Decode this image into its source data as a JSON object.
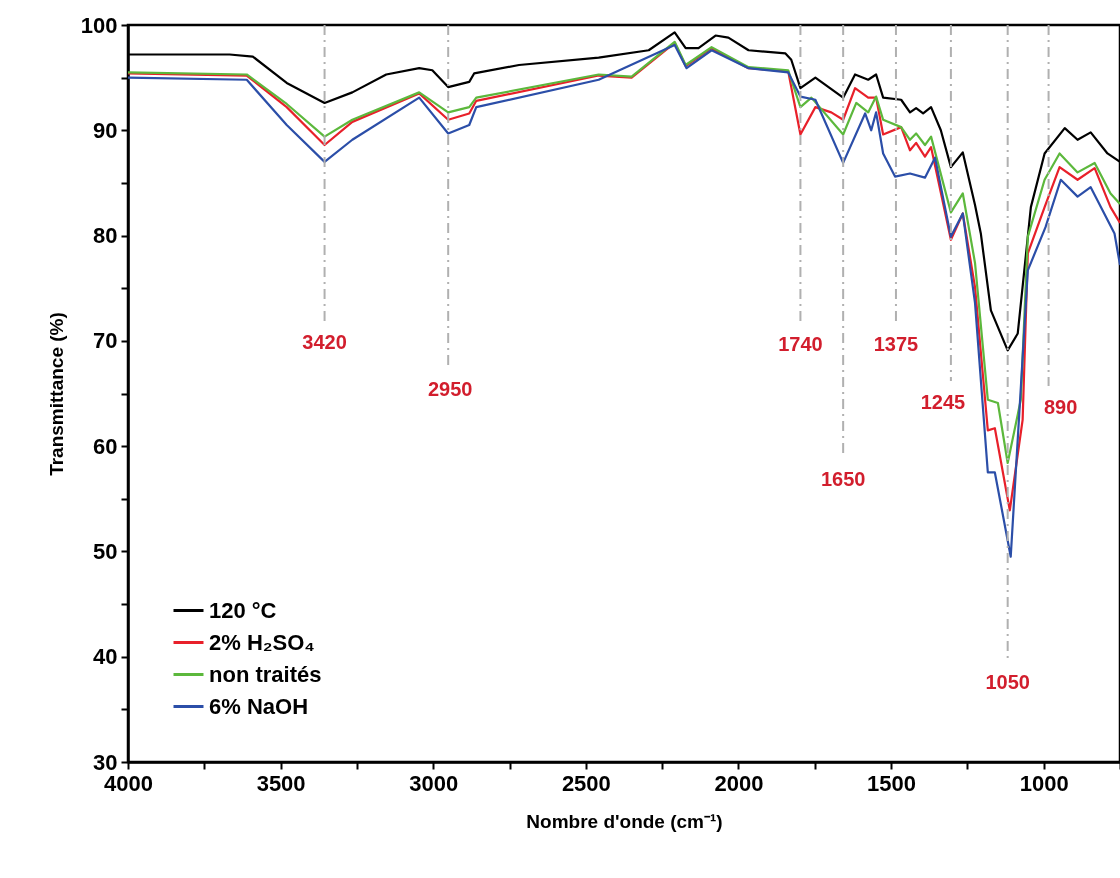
{
  "chart_data": {
    "type": "line",
    "xlabel": "Nombre d'onde (cm⁻¹)",
    "ylabel": "Transmittance (%)",
    "xlim": [
      4000,
      750
    ],
    "ylim": [
      30,
      100
    ],
    "xticks": [
      4000,
      {
        "value": 3750,
        "label": null
      },
      3500,
      {
        "value": 3250,
        "label": null
      },
      3000,
      {
        "value": 2750,
        "label": null
      },
      2500,
      {
        "value": 2250,
        "label": null
      },
      2000,
      {
        "value": 1750,
        "label": null
      },
      1500,
      {
        "value": 1250,
        "label": null
      },
      1000,
      {
        "value": 750,
        "label": null
      }
    ],
    "yticks": [
      30,
      {
        "value": 35,
        "label": null
      },
      40,
      {
        "value": 45,
        "label": null
      },
      50,
      {
        "value": 55,
        "label": null
      },
      60,
      {
        "value": 65,
        "label": null
      },
      70,
      {
        "value": 75,
        "label": null
      },
      80,
      {
        "value": 85,
        "label": null
      },
      90,
      {
        "value": 95,
        "label": null
      },
      100
    ],
    "legend": "bottom left",
    "grid": false,
    "marker": "none",
    "line_style": "solid",
    "series": [
      {
        "name": "120 °C",
        "color": "#000000",
        "x": [
          4000,
          3667,
          3591,
          3480,
          3356,
          3265,
          3154,
          3046,
          3003,
          2951,
          2882,
          2866,
          2719,
          2458,
          2294,
          2209,
          2173,
          2131,
          2075,
          2033,
          1967,
          1846,
          1827,
          1797,
          1748,
          1657,
          1618,
          1575,
          1549,
          1526,
          1467,
          1438,
          1418,
          1395,
          1369,
          1337,
          1304,
          1265,
          1225,
          1206,
          1173,
          1118,
          1085,
          1042,
          997,
          931,
          889,
          846,
          791,
          750
        ],
        "values": [
          97.2,
          97.2,
          97.0,
          94.5,
          92.6,
          93.6,
          95.3,
          95.9,
          95.7,
          94.1,
          94.6,
          95.4,
          96.2,
          96.9,
          97.6,
          99.3,
          97.8,
          97.8,
          99.0,
          98.8,
          97.6,
          97.3,
          96.7,
          94.0,
          95.0,
          93.1,
          95.3,
          94.8,
          95.3,
          93.1,
          92.9,
          91.7,
          92.1,
          91.6,
          92.2,
          90.0,
          86.5,
          87.9,
          82.9,
          80.2,
          72.9,
          69.1,
          70.7,
          82.7,
          87.8,
          90.2,
          89.1,
          89.8,
          87.8,
          87.0
        ]
      },
      {
        "name": "2% H₂SO₄",
        "color": "#e8202a",
        "x": [
          4000,
          3611,
          3480,
          3356,
          3265,
          3046,
          2951,
          2882,
          2859,
          2458,
          2350,
          2209,
          2173,
          2088,
          1967,
          1837,
          1797,
          1748,
          1696,
          1657,
          1618,
          1575,
          1549,
          1526,
          1467,
          1438,
          1418,
          1389,
          1369,
          1304,
          1265,
          1225,
          1183,
          1160,
          1111,
          1069,
          1052,
          997,
          948,
          889,
          833,
          781,
          750
        ],
        "values": [
          95.4,
          95.2,
          92.2,
          88.6,
          90.8,
          93.5,
          91.0,
          91.6,
          92.8,
          95.2,
          95.0,
          98.3,
          96.1,
          97.8,
          95.9,
          95.6,
          89.6,
          92.2,
          91.7,
          91.0,
          94.0,
          93.1,
          93.1,
          89.6,
          90.3,
          88.1,
          88.8,
          87.5,
          88.4,
          79.6,
          82.1,
          75.1,
          61.5,
          61.7,
          53.9,
          62.5,
          78.3,
          82.7,
          86.5,
          85.3,
          86.4,
          82.7,
          81.2
        ]
      },
      {
        "name": "non traités",
        "color": "#5cb83c",
        "x": [
          4000,
          3611,
          3480,
          3356,
          3265,
          3046,
          2951,
          2882,
          2859,
          2458,
          2350,
          2209,
          2173,
          2088,
          1967,
          1837,
          1797,
          1761,
          1657,
          1614,
          1575,
          1549,
          1526,
          1467,
          1438,
          1418,
          1389,
          1369,
          1304,
          1265,
          1225,
          1183,
          1150,
          1118,
          1075,
          1052,
          997,
          948,
          889,
          833,
          781,
          750
        ],
        "values": [
          95.5,
          95.3,
          92.5,
          89.4,
          91.0,
          93.6,
          91.7,
          92.2,
          93.1,
          95.3,
          95.1,
          98.4,
          96.2,
          97.9,
          96.0,
          95.7,
          92.2,
          93.1,
          89.6,
          92.6,
          91.7,
          93.2,
          91.0,
          90.3,
          89.1,
          89.7,
          88.6,
          89.4,
          82.2,
          84.0,
          77.4,
          64.4,
          64.1,
          58.4,
          64.4,
          79.9,
          85.3,
          87.8,
          86.0,
          86.9,
          84.0,
          83.0
        ]
      },
      {
        "name": "6% NaOH",
        "color": "#2b4ea8",
        "x": [
          4000,
          3611,
          3480,
          3356,
          3265,
          3046,
          2951,
          2882,
          2859,
          2458,
          2209,
          2170,
          2088,
          1967,
          1837,
          1797,
          1748,
          1657,
          1585,
          1565,
          1549,
          1526,
          1487,
          1438,
          1389,
          1356,
          1304,
          1265,
          1225,
          1183,
          1160,
          1108,
          1052,
          994,
          944,
          889,
          846,
          768,
          750
        ],
        "values": [
          95.0,
          94.8,
          90.5,
          87.0,
          89.1,
          93.1,
          89.7,
          90.5,
          92.2,
          94.8,
          98.1,
          95.9,
          97.6,
          95.9,
          95.5,
          93.2,
          92.9,
          86.9,
          91.6,
          90.0,
          91.7,
          87.8,
          85.6,
          85.9,
          85.5,
          87.4,
          79.9,
          82.1,
          73.6,
          57.5,
          57.5,
          49.5,
          76.7,
          80.8,
          85.3,
          83.7,
          84.6,
          80.2,
          77.2
        ]
      }
    ],
    "ref_lines": [
      {
        "axis": "x",
        "value": 3356,
        "color": "#b0b0b0",
        "line_style": "dashed"
      },
      {
        "axis": "x",
        "value": 2951,
        "color": "#b0b0b0",
        "line_style": "dashed"
      },
      {
        "axis": "x",
        "value": 1797,
        "color": "#b0b0b0",
        "line_style": "dashed"
      },
      {
        "axis": "x",
        "value": 1657,
        "color": "#b0b0b0",
        "line_style": "dashed"
      },
      {
        "axis": "x",
        "value": 1484,
        "color": "#b0b0b0",
        "line_style": "dashed"
      },
      {
        "axis": "x",
        "value": 1304,
        "color": "#b0b0b0",
        "line_style": "dashed"
      },
      {
        "axis": "x",
        "value": 1118,
        "color": "#b0b0b0",
        "line_style": "dashed"
      },
      {
        "axis": "x",
        "value": 984,
        "color": "#b0b0b0",
        "line_style": "dashed"
      }
    ],
    "annotations": [
      "3420",
      "2950",
      "1740",
      "1650",
      "1375",
      "1245",
      "1050",
      "890"
    ]
  }
}
